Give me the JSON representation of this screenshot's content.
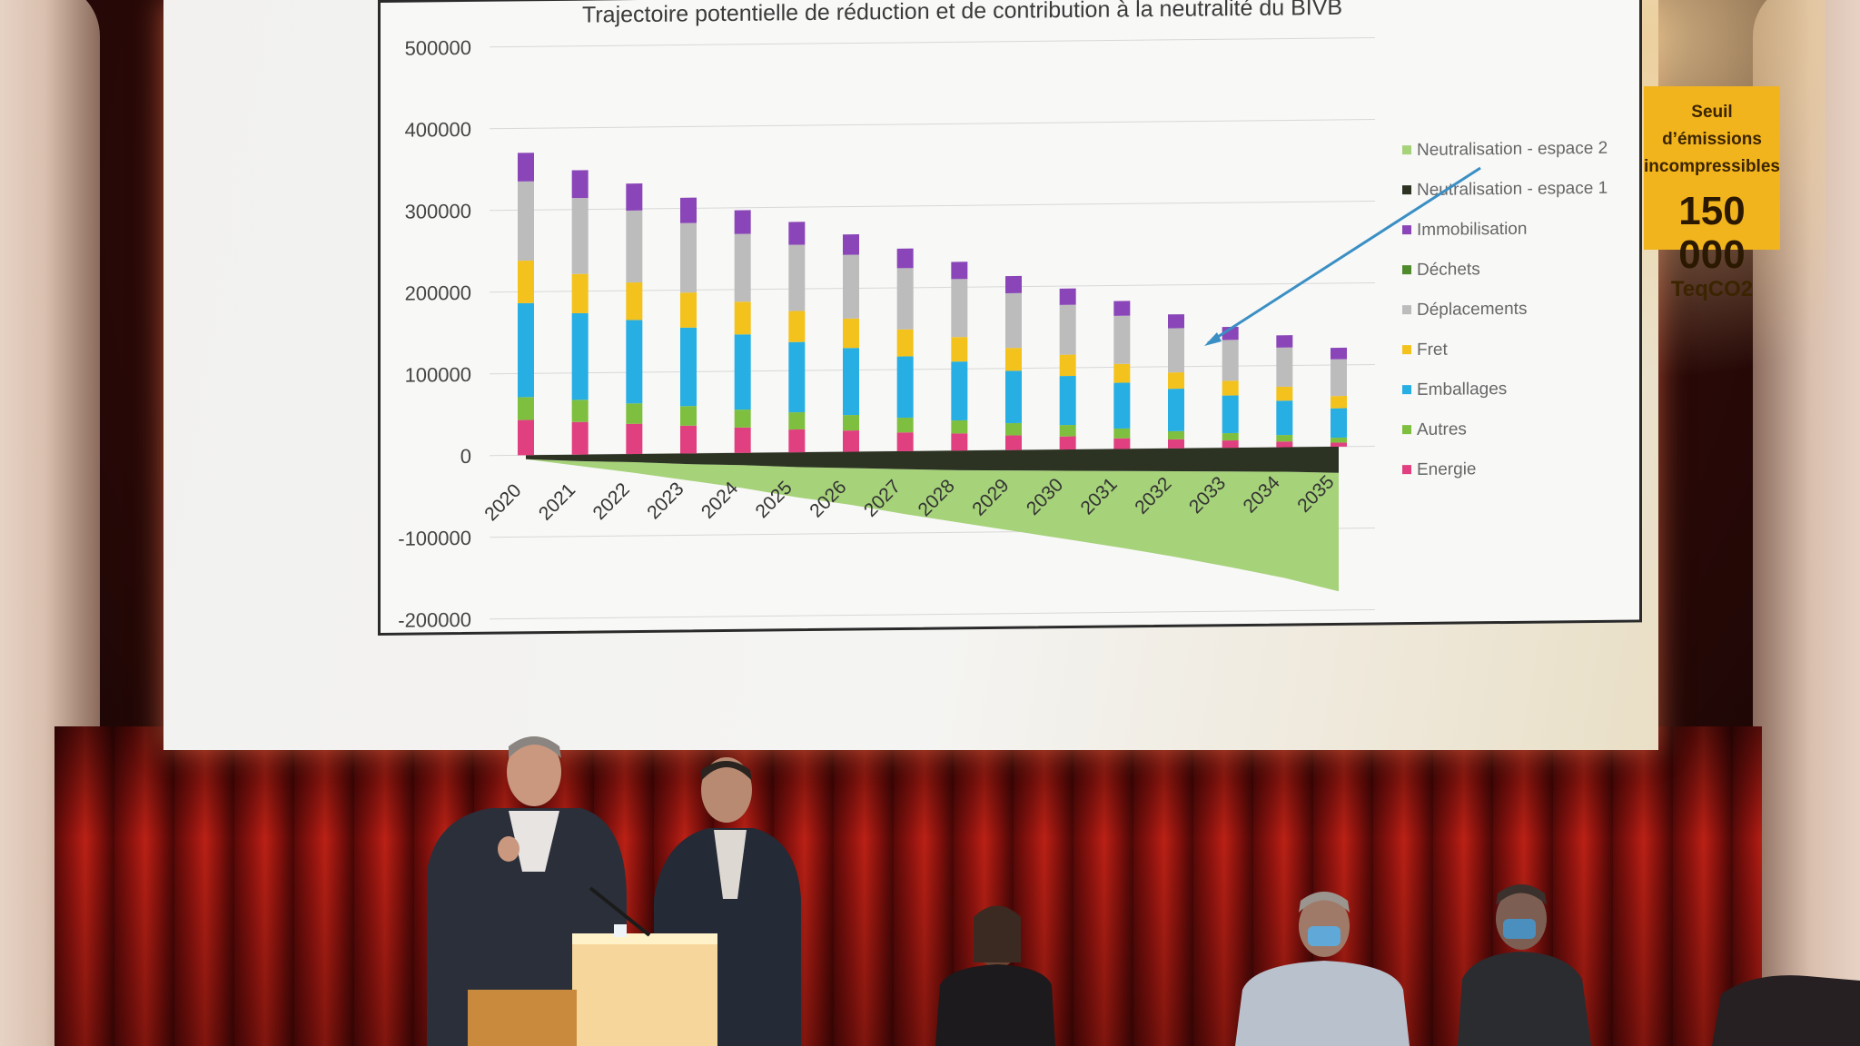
{
  "slide": {
    "title": "Trajectoire potentielle de réduction et de contribution à la neutralité du BIVB",
    "callout": {
      "line1": "Seuil d’émissions",
      "line2": "incompressibles",
      "value": "150 000",
      "unit": "TeqCO2"
    }
  },
  "chart_data": {
    "type": "bar",
    "stacked": true,
    "title": "Trajectoire potentielle de réduction et de contribution à la neutralité du BIVB",
    "categories": [
      "2020",
      "2021",
      "2022",
      "2023",
      "2024",
      "2025",
      "2026",
      "2027",
      "2028",
      "2029",
      "2030",
      "2031",
      "2032",
      "2033",
      "2034",
      "2035"
    ],
    "ylim": [
      -200000,
      500000
    ],
    "yticks": [
      "500000",
      "400000",
      "300000",
      "200000",
      "100000",
      "0",
      "-100000",
      "-200000"
    ],
    "grid": true,
    "legend_position": "right",
    "series": [
      {
        "name": "Energie",
        "color": "#e0407f",
        "values": [
          43000,
          40000,
          37000,
          34000,
          31000,
          28000,
          26000,
          23000,
          21000,
          18000,
          16000,
          13000,
          11000,
          9000,
          7000,
          5000
        ]
      },
      {
        "name": "Autres",
        "color": "#7fbf3f",
        "values": [
          28000,
          27000,
          25000,
          24000,
          22000,
          21000,
          19000,
          18000,
          16000,
          15000,
          14000,
          12000,
          10000,
          9000,
          8000,
          6000
        ]
      },
      {
        "name": "Emballages",
        "color": "#27aee3",
        "values": [
          115000,
          106000,
          102000,
          96000,
          92000,
          86000,
          82000,
          75000,
          72000,
          64000,
          60000,
          56000,
          52000,
          46000,
          42000,
          36000
        ]
      },
      {
        "name": "Fret",
        "color": "#f4c21c",
        "values": [
          52000,
          48000,
          46000,
          43000,
          40000,
          38000,
          36000,
          33000,
          30000,
          28000,
          26000,
          23000,
          20000,
          18000,
          17000,
          15000
        ]
      },
      {
        "name": "Déplacements",
        "color": "#bcbcbc",
        "values": [
          97000,
          93000,
          88000,
          85000,
          83000,
          81000,
          78000,
          75000,
          71000,
          67000,
          61000,
          59000,
          54000,
          50000,
          48000,
          45000
        ]
      },
      {
        "name": "Déchets",
        "color": "#4f8a2c",
        "values": [
          0,
          0,
          0,
          0,
          0,
          0,
          0,
          0,
          0,
          0,
          0,
          0,
          0,
          0,
          0,
          0
        ]
      },
      {
        "name": "Immobilisation",
        "color": "#8a46b8",
        "values": [
          35000,
          34000,
          33000,
          31000,
          29000,
          28000,
          25000,
          24000,
          21000,
          21000,
          20000,
          18000,
          17000,
          16000,
          15000,
          14000
        ]
      },
      {
        "name": "Neutralisation - espace 1",
        "color": "#2c3322",
        "values": [
          -5000,
          -8000,
          -10000,
          -13000,
          -15000,
          -18000,
          -20000,
          -22000,
          -24000,
          -25000,
          -26000,
          -27000,
          -28000,
          -29000,
          -30000,
          -32000
        ]
      },
      {
        "name": "Neutralisation - espace 2",
        "color": "#a6d27a",
        "values": [
          0,
          -6000,
          -13000,
          -20000,
          -28000,
          -37000,
          -45000,
          -55000,
          -64000,
          -74000,
          -84000,
          -94000,
          -105000,
          -117000,
          -130000,
          -145000
        ]
      }
    ],
    "legend_order": [
      "Neutralisation - espace 2",
      "Neutralisation - espace 1",
      "Immobilisation",
      "Déchets",
      "Déplacements",
      "Fret",
      "Emballages",
      "Autres",
      "Energie"
    ]
  }
}
